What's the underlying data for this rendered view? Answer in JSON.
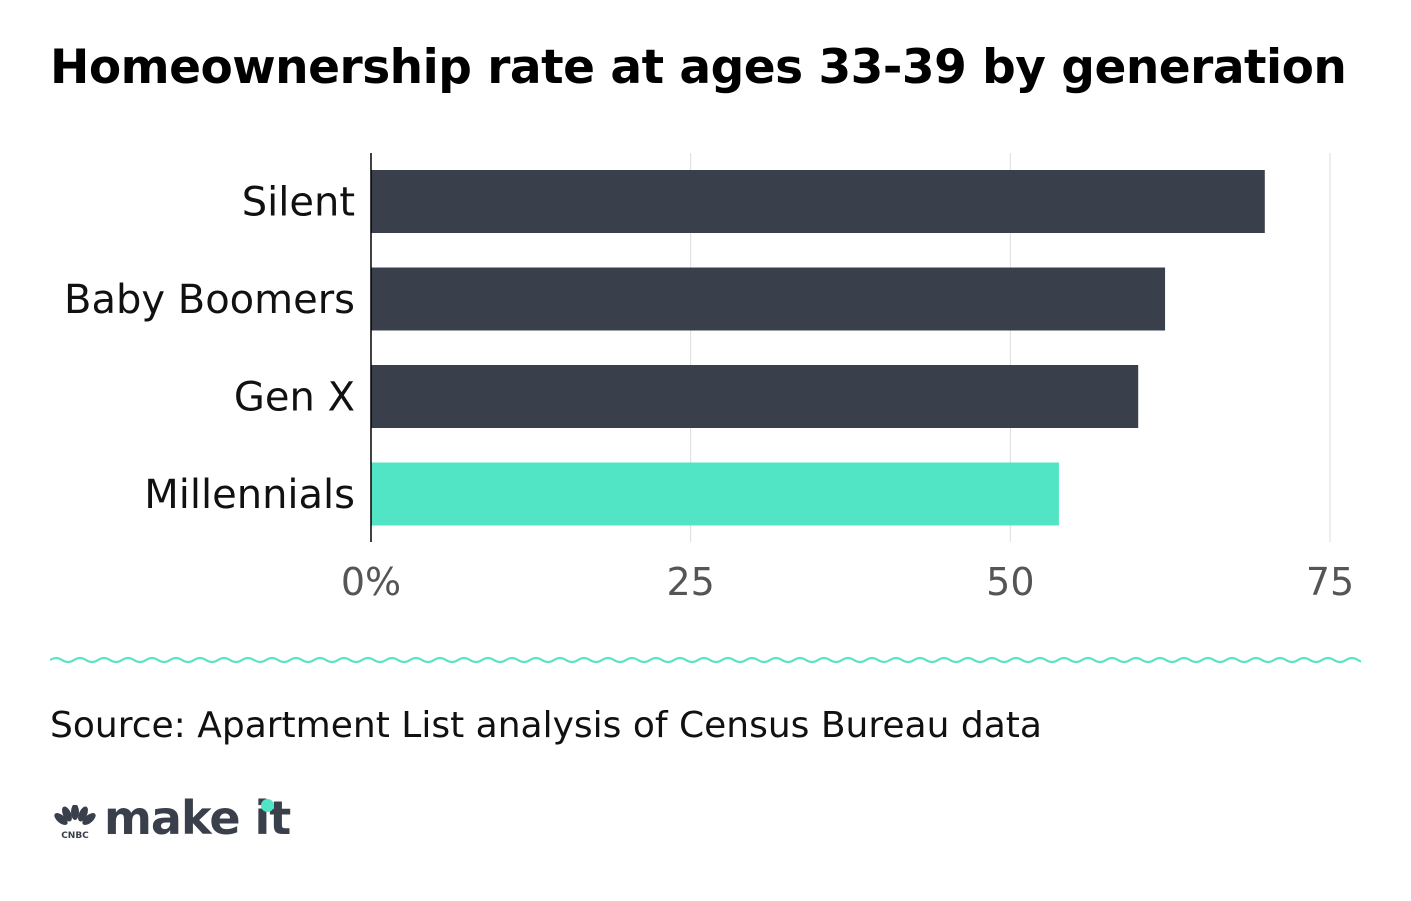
{
  "title": "Homeownership rate at ages 33-39 by generation",
  "source": "Source: Apartment List analysis of Census Bureau data",
  "brand": {
    "network_label": "CNBC",
    "product_label": "make it",
    "accent_color": "#52e5c5",
    "text_color": "#3a404b"
  },
  "colors": {
    "bar_default": "#3a404b",
    "bar_highlight": "#52e5c5",
    "grid": "#dddddd",
    "wave": "#52e5c5"
  },
  "chart_data": {
    "type": "bar",
    "orientation": "horizontal",
    "categories": [
      "Silent",
      "Baby Boomers",
      "Gen X",
      "Millennials"
    ],
    "values": [
      69.9,
      62.1,
      60.0,
      53.8
    ],
    "highlight": "Millennials",
    "xlim": [
      0,
      75
    ],
    "ticks": [
      0,
      25,
      50,
      75
    ],
    "tick_labels": [
      "0%",
      "25",
      "50",
      "75"
    ],
    "grid": true,
    "xlabel": "",
    "ylabel": ""
  }
}
